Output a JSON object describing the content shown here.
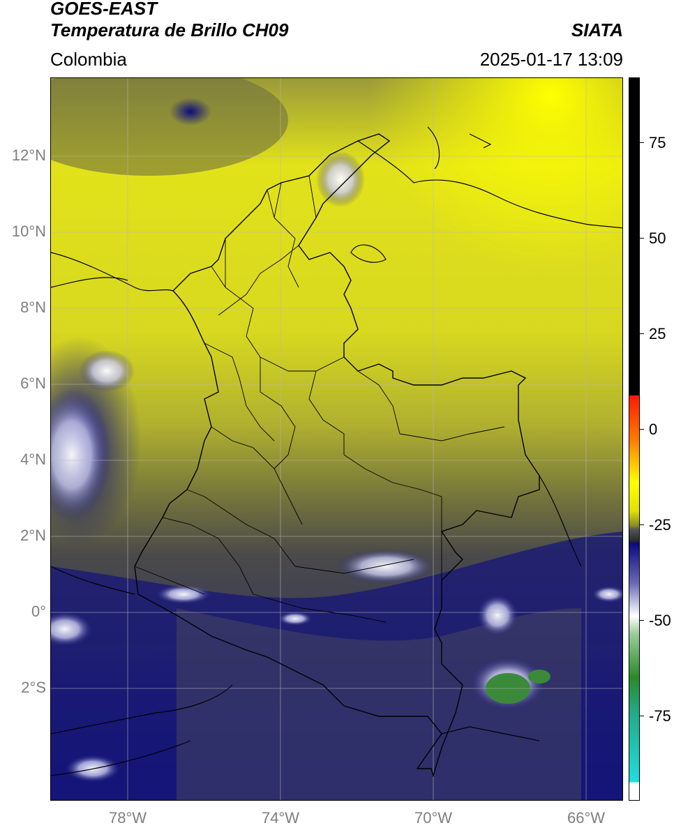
{
  "header": {
    "satellite": "GOES-EAST",
    "product": "Temperatura de Brillo CH09",
    "brand": "SIATA",
    "region": "Colombia",
    "timestamp": "2025-01-17 13:09"
  },
  "map": {
    "lat_labels": [
      "12°N",
      "10°N",
      "8°N",
      "6°N",
      "4°N",
      "2°N",
      "0°",
      "2°S"
    ],
    "lon_labels": [
      "78°W",
      "74°W",
      "70°W",
      "66°W"
    ]
  },
  "colorbar": {
    "labels": [
      "75",
      "50",
      "25",
      "0",
      "-25",
      "-50",
      "-75"
    ],
    "colors": {
      "black": "#000000",
      "red": "#ff1a00",
      "orange": "#ff8c00",
      "yellow": "#ffff00",
      "olive": "#8a8a2a",
      "gray": "#555555",
      "navy": "#0a0a80",
      "white": "#ffffff",
      "green": "#2a8a2a",
      "cyan": "#22dddd"
    }
  }
}
